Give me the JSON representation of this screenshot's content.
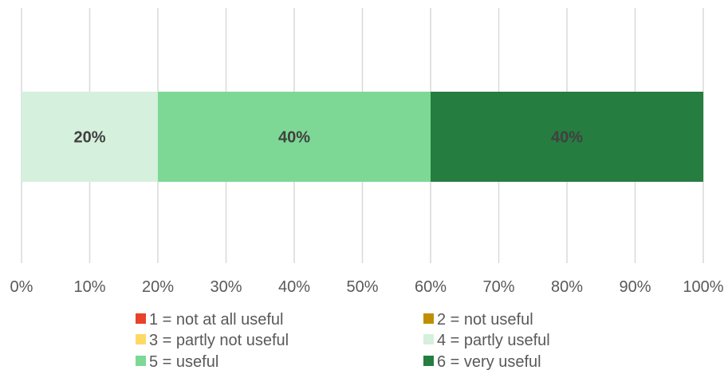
{
  "chart_data": {
    "type": "bar",
    "orientation": "horizontal",
    "stacked": true,
    "normalized_percent": true,
    "categories": [
      ""
    ],
    "series": [
      {
        "name": "1 = not at all useful",
        "color": "#e8412c",
        "values": [
          0
        ]
      },
      {
        "name": "2 = not useful",
        "color": "#bf8f00",
        "values": [
          0
        ]
      },
      {
        "name": "3 = partly not useful",
        "color": "#ffd966",
        "values": [
          0
        ]
      },
      {
        "name": "4 = partly useful",
        "color": "#d5f0dd",
        "values": [
          20
        ]
      },
      {
        "name": "5 = useful",
        "color": "#7dd895",
        "values": [
          40
        ]
      },
      {
        "name": "6 = very useful",
        "color": "#267d40",
        "values": [
          40
        ]
      }
    ],
    "data_labels": [
      "",
      "",
      "",
      "20%",
      "40%",
      "40%"
    ],
    "x_ticks": [
      "0%",
      "10%",
      "20%",
      "30%",
      "40%",
      "50%",
      "60%",
      "70%",
      "80%",
      "90%",
      "100%"
    ],
    "xlim": [
      0,
      100
    ],
    "grid": "vertical",
    "legend_position": "bottom",
    "title": "",
    "xlabel": "",
    "ylabel": ""
  }
}
